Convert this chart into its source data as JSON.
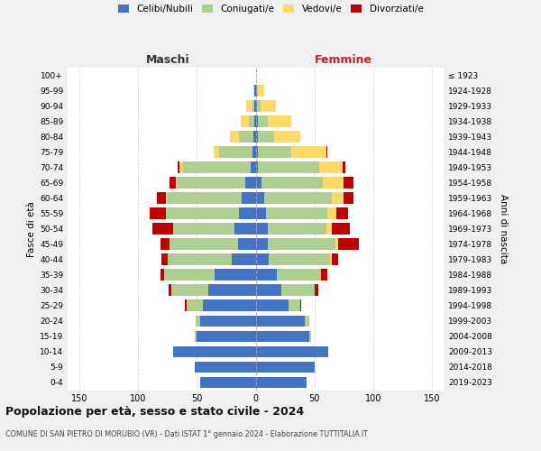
{
  "age_groups": [
    "100+",
    "95-99",
    "90-94",
    "85-89",
    "80-84",
    "75-79",
    "70-74",
    "65-69",
    "60-64",
    "55-59",
    "50-54",
    "45-49",
    "40-44",
    "35-39",
    "30-34",
    "25-29",
    "20-24",
    "15-19",
    "10-14",
    "5-9",
    "0-4"
  ],
  "birth_years": [
    "≤ 1923",
    "1924-1928",
    "1929-1933",
    "1934-1938",
    "1939-1943",
    "1944-1948",
    "1949-1953",
    "1954-1958",
    "1959-1963",
    "1964-1968",
    "1969-1973",
    "1974-1978",
    "1979-1983",
    "1984-1988",
    "1989-1993",
    "1994-1998",
    "1999-2003",
    "2004-2008",
    "2009-2013",
    "2014-2018",
    "2019-2023"
  ],
  "maschi": {
    "celibi": [
      0,
      1,
      1,
      1,
      2,
      3,
      4,
      9,
      12,
      14,
      18,
      15,
      20,
      35,
      40,
      45,
      47,
      50,
      70,
      52,
      47
    ],
    "coniugati": [
      0,
      0,
      2,
      5,
      12,
      28,
      58,
      58,
      63,
      62,
      52,
      58,
      55,
      43,
      32,
      14,
      4,
      2,
      0,
      0,
      0
    ],
    "vedovi": [
      0,
      1,
      5,
      7,
      8,
      5,
      3,
      1,
      1,
      0,
      0,
      0,
      0,
      0,
      0,
      0,
      0,
      0,
      0,
      0,
      0
    ],
    "divorziati": [
      0,
      0,
      0,
      0,
      0,
      0,
      1,
      5,
      8,
      14,
      18,
      8,
      5,
      3,
      2,
      1,
      0,
      0,
      0,
      0,
      0
    ]
  },
  "femmine": {
    "nubili": [
      0,
      1,
      1,
      2,
      2,
      2,
      2,
      5,
      7,
      9,
      10,
      10,
      11,
      18,
      22,
      28,
      42,
      46,
      62,
      50,
      43
    ],
    "coniugate": [
      0,
      1,
      3,
      8,
      14,
      28,
      52,
      52,
      58,
      52,
      50,
      58,
      52,
      38,
      28,
      10,
      4,
      1,
      0,
      0,
      0
    ],
    "vedove": [
      0,
      5,
      13,
      20,
      22,
      30,
      20,
      18,
      10,
      8,
      5,
      2,
      2,
      0,
      0,
      0,
      0,
      0,
      0,
      0,
      0
    ],
    "divorziate": [
      0,
      0,
      0,
      0,
      0,
      1,
      2,
      8,
      8,
      10,
      15,
      18,
      5,
      5,
      3,
      1,
      0,
      0,
      0,
      0,
      0
    ]
  },
  "colors": {
    "celibi": "#4472C4",
    "coniugati": "#AECF8F",
    "vedovi": "#FFD966",
    "divorziati": "#C00000"
  },
  "legend_labels": [
    "Celibi/Nubili",
    "Coniugati/e",
    "Vedovi/e",
    "Divorziati/e"
  ],
  "title": "Popolazione per età, sesso e stato civile - 2024",
  "subtitle": "COMUNE DI SAN PIETRO DI MORUBIO (VR) - Dati ISTAT 1° gennaio 2024 - Elaborazione TUTTITALIA.IT",
  "maschi_label": "Maschi",
  "femmine_label": "Femmine",
  "ylabel_left": "Fasce di età",
  "ylabel_right": "Anni di nascita",
  "xlim": 160,
  "bg_color": "#f0f0f0",
  "plot_bg": "#ffffff",
  "grid_color": "#bbbbbb"
}
